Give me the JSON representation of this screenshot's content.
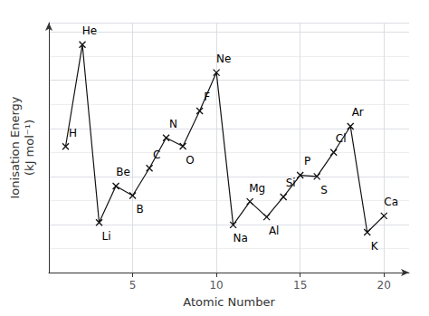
{
  "chart_data": {
    "type": "line",
    "xlabel": "Atomic Number",
    "ylabel": "Ionisation Energy\n(kJ mol⁻¹)",
    "x": [
      1,
      2,
      3,
      4,
      5,
      6,
      7,
      8,
      9,
      10,
      11,
      12,
      13,
      14,
      15,
      16,
      17,
      18,
      19,
      20
    ],
    "series": [
      {
        "values": [
          1312,
          2372,
          520,
          900,
          801,
          1086,
          1402,
          1314,
          1681,
          2081,
          496,
          738,
          578,
          787,
          1012,
          1000,
          1251,
          1521,
          419,
          590
        ],
        "labels": [
          "H",
          "He",
          "Li",
          "Be",
          "B",
          "C",
          "N",
          "O",
          "F",
          "Ne",
          "Na",
          "Mg",
          "Al",
          "Si",
          "P",
          "S",
          "Cl",
          "Ar",
          "K",
          "Ca"
        ],
        "color": "#111111",
        "marker": "x"
      }
    ],
    "xlim": [
      0,
      21.5
    ],
    "ylim": [
      0,
      2600
    ],
    "xticks": [
      5,
      10,
      15,
      20
    ],
    "yticks": [
      0,
      500,
      1000,
      1500,
      2000,
      2500
    ],
    "grid": true,
    "tick_labels": "x"
  }
}
